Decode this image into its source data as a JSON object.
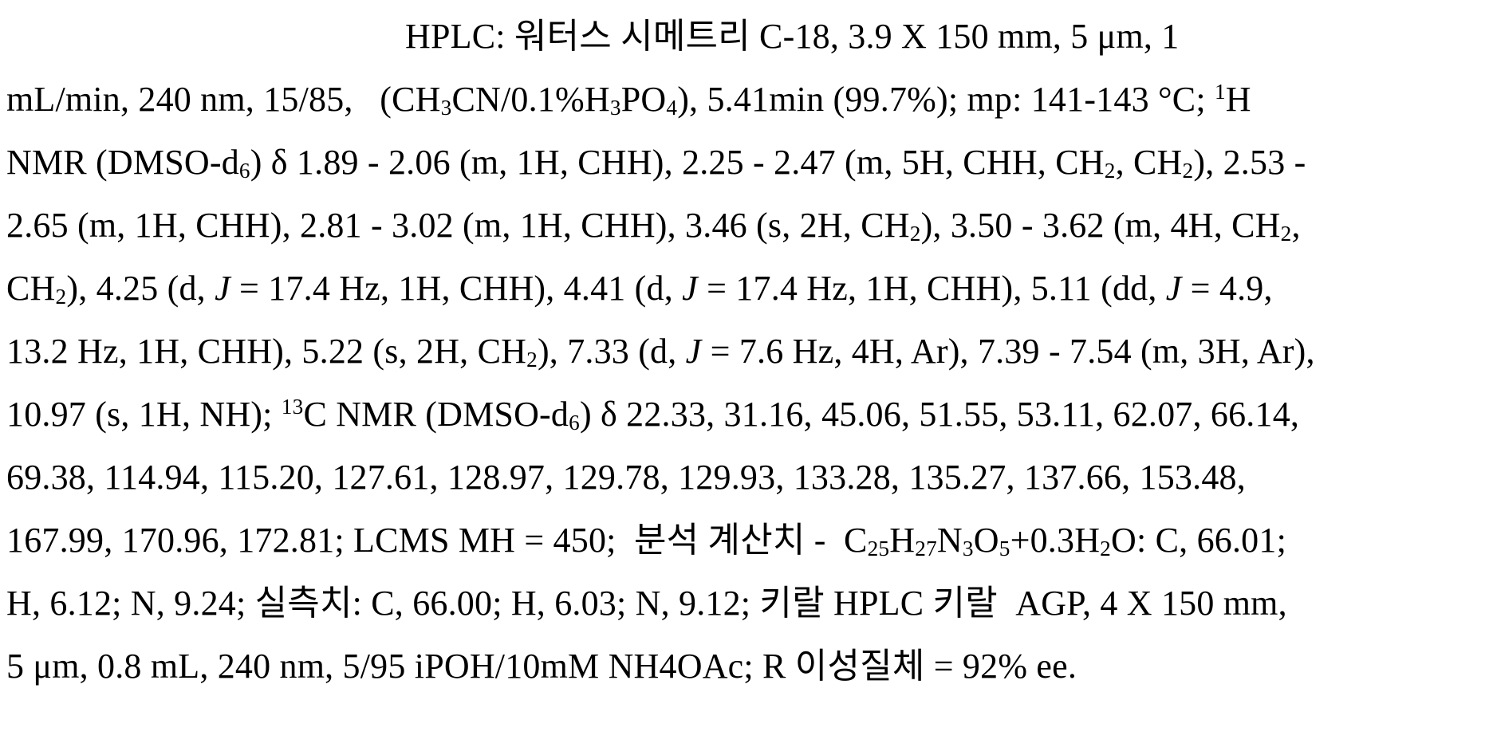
{
  "colors": {
    "background": "#ffffff",
    "text": "#000000"
  },
  "document": {
    "type": "patent-analytical-data-paragraph",
    "lines": [
      [
        {
          "t": "HPLC: 워터스 시메트리 C-18, 3.9 X 150 mm, 5 μm, 1"
        }
      ],
      [
        {
          "t": "mL/min, 240 nm, 15/85,   (CH"
        },
        {
          "t": "3",
          "s": "sub"
        },
        {
          "t": "CN/0.1%H"
        },
        {
          "t": "3",
          "s": "sub"
        },
        {
          "t": "PO"
        },
        {
          "t": "4",
          "s": "sub"
        },
        {
          "t": "), 5.41min (99.7%); mp: 141-143 °C; "
        },
        {
          "t": "1",
          "s": "sup"
        },
        {
          "t": "H"
        }
      ],
      [
        {
          "t": "NMR (DMSO-d"
        },
        {
          "t": "6",
          "s": "sub"
        },
        {
          "t": ") δ 1.89 - 2.06 (m, 1H, CHH), 2.25 - 2.47 (m, 5H, CHH, CH"
        },
        {
          "t": "2",
          "s": "sub"
        },
        {
          "t": ", CH"
        },
        {
          "t": "2",
          "s": "sub"
        },
        {
          "t": "), 2.53 -"
        }
      ],
      [
        {
          "t": "2.65 (m, 1H, CHH), 2.81 - 3.02 (m, 1H, CHH), 3.46 (s, 2H, CH"
        },
        {
          "t": "2",
          "s": "sub"
        },
        {
          "t": "), 3.50 - 3.62 (m, 4H, CH"
        },
        {
          "t": "2",
          "s": "sub"
        },
        {
          "t": ","
        }
      ],
      [
        {
          "t": "CH"
        },
        {
          "t": "2",
          "s": "sub"
        },
        {
          "t": "), 4.25 (d, "
        },
        {
          "t": "J",
          "s": "i"
        },
        {
          "t": " = 17.4 Hz, 1H, CHH), 4.41 (d, "
        },
        {
          "t": "J",
          "s": "i"
        },
        {
          "t": " = 17.4 Hz, 1H, CHH), 5.11 (dd, "
        },
        {
          "t": "J",
          "s": "i"
        },
        {
          "t": " = 4.9,"
        }
      ],
      [
        {
          "t": "13.2 Hz, 1H, CHH), 5.22 (s, 2H, CH"
        },
        {
          "t": "2",
          "s": "sub"
        },
        {
          "t": "), 7.33 (d, "
        },
        {
          "t": "J",
          "s": "i"
        },
        {
          "t": " = 7.6 Hz, 4H, Ar), 7.39 - 7.54 (m, 3H, Ar),"
        }
      ],
      [
        {
          "t": "10.97 (s, 1H, NH); "
        },
        {
          "t": "13",
          "s": "sup"
        },
        {
          "t": "C NMR (DMSO-d"
        },
        {
          "t": "6",
          "s": "sub"
        },
        {
          "t": ") δ 22.33, 31.16, 45.06, 51.55, 53.11, 62.07, 66.14,"
        }
      ],
      [
        {
          "t": "69.38, 114.94, 115.20, 127.61, 128.97, 129.78, 129.93, 133.28, 135.27, 137.66, 153.48,"
        }
      ],
      [
        {
          "t": "167.99, 170.96, 172.81; LCMS MH = 450;  분석 계산치 -  C"
        },
        {
          "t": "25",
          "s": "sub"
        },
        {
          "t": "H"
        },
        {
          "t": "27",
          "s": "sub"
        },
        {
          "t": "N"
        },
        {
          "t": "3",
          "s": "sub"
        },
        {
          "t": "O"
        },
        {
          "t": "5",
          "s": "sub"
        },
        {
          "t": "+0.3H"
        },
        {
          "t": "2",
          "s": "sub"
        },
        {
          "t": "O: C, 66.01;"
        }
      ],
      [
        {
          "t": "H, 6.12; N, 9.24; 실측치: C, 66.00; H, 6.03; N, 9.12; 키랄 HPLC 키랄  AGP, 4 X 150 mm,"
        }
      ],
      [
        {
          "t": "5 μm, 0.8 mL, 240 nm, 5/95 iPOH/10mM NH4OAc; R 이성질체 = 92% ee."
        }
      ]
    ]
  }
}
